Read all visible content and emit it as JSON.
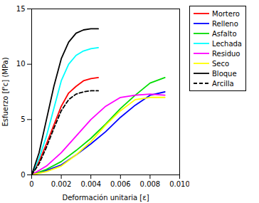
{
  "chart_data": {
    "type": "line",
    "xlabel": "Deformación unitaria [ε]",
    "ylabel": "Esfuerzo [f'c] (MPa)",
    "xlim": [
      0,
      0.01
    ],
    "ylim": [
      0,
      15
    ],
    "xticks": [
      0,
      0.002,
      0.004,
      0.006,
      0.008,
      {
        "value": 0.01,
        "label": "0.010"
      }
    ],
    "yticks": [
      0,
      5,
      10,
      15
    ],
    "legend": "right",
    "series": [
      {
        "name": "Mortero",
        "color": "#ff0000",
        "line_style": "solid",
        "x": [
          0,
          0.0005,
          0.001,
          0.0015,
          0.002,
          0.0025,
          0.003,
          0.0035,
          0.004,
          0.0045
        ],
        "values": [
          0,
          1.2,
          2.8,
          4.5,
          6.2,
          7.4,
          8.0,
          8.5,
          8.7,
          8.8
        ]
      },
      {
        "name": "Relleno",
        "color": "#0000ff",
        "line_style": "solid",
        "x": [
          0,
          0.001,
          0.002,
          0.003,
          0.004,
          0.005,
          0.006,
          0.007,
          0.008,
          0.009
        ],
        "values": [
          0,
          0.4,
          0.9,
          1.8,
          2.8,
          3.9,
          5.2,
          6.3,
          7.2,
          7.5
        ]
      },
      {
        "name": "Asfalto",
        "color": "#00dd00",
        "line_style": "solid",
        "x": [
          0,
          0.001,
          0.002,
          0.003,
          0.004,
          0.005,
          0.006,
          0.007,
          0.008,
          0.009
        ],
        "values": [
          0,
          0.5,
          1.2,
          2.2,
          3.3,
          4.6,
          6.0,
          7.2,
          8.3,
          8.8
        ]
      },
      {
        "name": "Lechada",
        "color": "#00ffff",
        "line_style": "solid",
        "x": [
          0,
          0.0005,
          0.001,
          0.0015,
          0.002,
          0.0025,
          0.003,
          0.0035,
          0.004,
          0.0045
        ],
        "values": [
          0,
          1.5,
          3.5,
          6.0,
          8.5,
          10.0,
          10.8,
          11.2,
          11.4,
          11.5
        ]
      },
      {
        "name": "Residuo",
        "color": "#ff00ff",
        "line_style": "solid",
        "x": [
          0,
          0.001,
          0.002,
          0.003,
          0.004,
          0.005,
          0.006,
          0.007,
          0.008,
          0.009
        ],
        "values": [
          0,
          0.8,
          2.0,
          3.5,
          5.0,
          6.2,
          7.0,
          7.2,
          7.3,
          7.2
        ]
      },
      {
        "name": "Seco",
        "color": "#ffff00",
        "line_style": "solid",
        "x": [
          0,
          0.001,
          0.002,
          0.003,
          0.004,
          0.005,
          0.006,
          0.007,
          0.008,
          0.009
        ],
        "values": [
          0,
          0.3,
          0.8,
          1.8,
          3.0,
          4.5,
          5.8,
          6.8,
          7.0,
          7.0
        ]
      },
      {
        "name": "Bloque",
        "color": "#000000",
        "line_style": "solid",
        "x": [
          0,
          0.0005,
          0.001,
          0.0015,
          0.002,
          0.0025,
          0.003,
          0.0035,
          0.004,
          0.0045
        ],
        "values": [
          0,
          2.0,
          5.0,
          8.0,
          10.5,
          12.0,
          12.8,
          13.1,
          13.2,
          13.2
        ]
      },
      {
        "name": "Arcilla",
        "color": "#000000",
        "line_style": "dashed",
        "x": [
          0,
          0.0005,
          0.001,
          0.0015,
          0.002,
          0.0025,
          0.003,
          0.0035,
          0.004,
          0.0045
        ],
        "values": [
          0,
          1.0,
          2.5,
          4.2,
          5.8,
          6.8,
          7.3,
          7.5,
          7.6,
          7.6
        ]
      }
    ]
  }
}
